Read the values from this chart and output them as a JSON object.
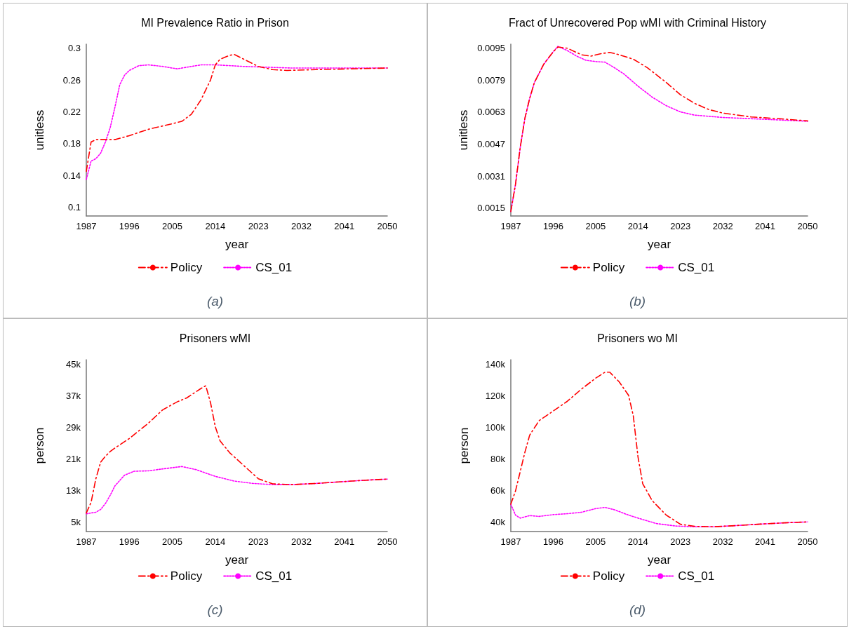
{
  "chart_data": [
    {
      "type": "line",
      "title": "MI Prevalence Ratio in Prison",
      "xlabel": "year",
      "ylabel": "unitless",
      "annotations": [
        "(a)"
      ],
      "xlim": [
        1987,
        2050
      ],
      "xticks": [
        1987,
        1996,
        2005,
        2014,
        2023,
        2032,
        2041,
        2050
      ],
      "ylim": [
        0.089,
        0.305
      ],
      "yticks": [
        0.1,
        0.14,
        0.18,
        0.22,
        0.26,
        0.3
      ],
      "grid": false,
      "legend": "bottom",
      "marker": "none",
      "series": [
        {
          "name": "Policy",
          "color": "#ff0000",
          "line_style": "dashed",
          "x": [
            1987,
            1988,
            1989,
            1991,
            1993,
            1996,
            2000,
            2005,
            2007,
            2009,
            2011,
            2013,
            2014,
            2015,
            2017,
            2018,
            2020,
            2023,
            2026,
            2029,
            2035,
            2050
          ],
          "values": [
            0.145,
            0.182,
            0.185,
            0.185,
            0.185,
            0.19,
            0.198,
            0.205,
            0.208,
            0.217,
            0.235,
            0.26,
            0.279,
            0.286,
            0.291,
            0.292,
            0.286,
            0.277,
            0.273,
            0.272,
            0.273,
            0.275
          ]
        },
        {
          "name": "CS_01",
          "color": "#ff00ff",
          "line_style": "dotted",
          "x": [
            1987,
            1988,
            1989,
            1990,
            1991,
            1992,
            1993,
            1994,
            1995,
            1996,
            1998,
            2000,
            2003,
            2006,
            2008,
            2011,
            2014,
            2020,
            2030,
            2050
          ],
          "values": [
            0.135,
            0.158,
            0.161,
            0.168,
            0.182,
            0.2,
            0.226,
            0.254,
            0.266,
            0.272,
            0.278,
            0.279,
            0.277,
            0.274,
            0.276,
            0.279,
            0.279,
            0.277,
            0.275,
            0.275
          ]
        }
      ]
    },
    {
      "type": "line",
      "title": "Fract of Unrecovered Pop wMI with Criminal History",
      "xlabel": "year",
      "ylabel": "unitless",
      "annotations": [
        "(b)"
      ],
      "xlim": [
        1987,
        2050
      ],
      "xticks": [
        1987,
        1996,
        2005,
        2014,
        2023,
        2032,
        2041,
        2050
      ],
      "ylim": [
        0.0011,
        0.0097
      ],
      "yticks": [
        0.0015,
        0.0031,
        0.0047,
        0.0063,
        0.0079,
        0.0095
      ],
      "grid": false,
      "legend": "bottom",
      "marker": "none",
      "series": [
        {
          "name": "Policy",
          "color": "#ff0000",
          "line_style": "dashed",
          "x": [
            1987,
            1988,
            1989,
            1990,
            1991,
            1992,
            1994,
            1996,
            1997,
            1999,
            2002,
            2004,
            2006,
            2008,
            2010,
            2013,
            2016,
            2020,
            2023,
            2026,
            2029,
            2032,
            2038,
            2044,
            2050
          ],
          "values": [
            0.00132,
            0.00269,
            0.00453,
            0.006,
            0.00698,
            0.00778,
            0.0087,
            0.00932,
            0.00956,
            0.0095,
            0.00917,
            0.0091,
            0.00922,
            0.00929,
            0.00917,
            0.00895,
            0.00852,
            0.00778,
            0.00717,
            0.00674,
            0.00643,
            0.00625,
            0.00606,
            0.00597,
            0.00586
          ]
        },
        {
          "name": "CS_01",
          "color": "#ff00ff",
          "line_style": "dotted",
          "x": [
            1987,
            1988,
            1989,
            1990,
            1991,
            1992,
            1994,
            1996,
            1997,
            1999,
            2001,
            2003,
            2005,
            2007,
            2009,
            2011,
            2014,
            2017,
            2020,
            2023,
            2026,
            2032,
            2040,
            2050
          ],
          "values": [
            0.00132,
            0.00269,
            0.00453,
            0.006,
            0.00698,
            0.00778,
            0.0087,
            0.00932,
            0.00959,
            0.00938,
            0.0091,
            0.00889,
            0.00883,
            0.0088,
            0.00852,
            0.00821,
            0.0076,
            0.00705,
            0.00662,
            0.00631,
            0.00615,
            0.00603,
            0.00595,
            0.00584
          ]
        }
      ]
    },
    {
      "type": "line",
      "title": "Prisoners wMI",
      "xlabel": "year",
      "ylabel": "person",
      "annotations": [
        "(c)"
      ],
      "xlim": [
        1987,
        2050
      ],
      "xticks": [
        1987,
        1996,
        2005,
        2014,
        2023,
        2032,
        2041,
        2050
      ],
      "ylim": [
        2600,
        46200
      ],
      "yticks": [
        {
          "value": 5000,
          "label": "5k"
        },
        {
          "value": 13000,
          "label": "13k"
        },
        {
          "value": 21000,
          "label": "21k"
        },
        {
          "value": 29000,
          "label": "29k"
        },
        {
          "value": 37000,
          "label": "37k"
        },
        {
          "value": 45000,
          "label": "45k"
        }
      ],
      "grid": false,
      "legend": "bottom",
      "marker": "none",
      "series": [
        {
          "name": "Policy",
          "color": "#ff0000",
          "line_style": "dashed",
          "x": [
            1987,
            1988,
            1989,
            1990,
            1991,
            1992,
            1993,
            1996,
            2000,
            2003,
            2006,
            2008,
            2011,
            2012,
            2013,
            2014,
            2015,
            2017,
            2020,
            2023,
            2026,
            2030,
            2035,
            2040,
            2045,
            2050
          ],
          "values": [
            7300,
            10000,
            16000,
            20200,
            21700,
            22900,
            23800,
            26200,
            30100,
            33500,
            35500,
            36500,
            38900,
            39600,
            35300,
            29200,
            25600,
            22600,
            19300,
            16000,
            14700,
            14500,
            14800,
            15200,
            15600,
            15900
          ]
        },
        {
          "name": "CS_01",
          "color": "#ff00ff",
          "line_style": "dotted",
          "x": [
            1987,
            1989,
            1990,
            1991,
            1992,
            1993,
            1995,
            1997,
            2000,
            2003,
            2007,
            2010,
            2014,
            2018,
            2022,
            2026,
            2030,
            2035,
            2040,
            2045,
            2050
          ],
          "values": [
            7100,
            7500,
            8200,
            9700,
            11800,
            14200,
            16900,
            17900,
            18000,
            18500,
            19100,
            18300,
            16600,
            15400,
            14800,
            14500,
            14500,
            14800,
            15200,
            15600,
            15900
          ]
        }
      ]
    },
    {
      "type": "line",
      "title": "Prisoners wo MI",
      "xlabel": "year",
      "ylabel": "person",
      "annotations": [
        "(d)"
      ],
      "xlim": [
        1987,
        2050
      ],
      "xticks": [
        1987,
        1996,
        2005,
        2014,
        2023,
        2032,
        2041,
        2050
      ],
      "ylim": [
        34200,
        143000
      ],
      "yticks": [
        {
          "value": 40000,
          "label": "40k"
        },
        {
          "value": 60000,
          "label": "60k"
        },
        {
          "value": 80000,
          "label": "80k"
        },
        {
          "value": 100000,
          "label": "100k"
        },
        {
          "value": 120000,
          "label": "120k"
        },
        {
          "value": 140000,
          "label": "140k"
        }
      ],
      "grid": false,
      "legend": "bottom",
      "marker": "none",
      "series": [
        {
          "name": "Policy",
          "color": "#ff0000",
          "line_style": "dashed",
          "x": [
            1987,
            1988,
            1989,
            1990,
            1991,
            1992,
            1993,
            1996,
            1999,
            2002,
            2005,
            2007,
            2008,
            2010,
            2012,
            2013,
            2014,
            2015,
            2017,
            2020,
            2023,
            2026,
            2030,
            2035,
            2040,
            2045,
            2050
          ],
          "values": [
            51500,
            59900,
            72200,
            84500,
            95200,
            99800,
            104400,
            110500,
            116700,
            124400,
            131300,
            135100,
            135100,
            129000,
            120500,
            107500,
            81400,
            64500,
            53800,
            44600,
            38800,
            37500,
            37200,
            38000,
            38900,
            39700,
            40300
          ]
        },
        {
          "name": "CS_01",
          "color": "#ff00ff",
          "line_style": "dotted",
          "x": [
            1987,
            1988,
            1989,
            1991,
            1993,
            1996,
            1999,
            2002,
            2005,
            2007,
            2009,
            2012,
            2015,
            2018,
            2022,
            2026,
            2030,
            2035,
            2040,
            2045,
            2050
          ],
          "values": [
            51500,
            44600,
            42700,
            44300,
            43800,
            44900,
            45500,
            46400,
            48700,
            49500,
            48000,
            44600,
            41800,
            39200,
            37700,
            37200,
            37200,
            38000,
            38900,
            39700,
            40300
          ]
        }
      ]
    }
  ]
}
